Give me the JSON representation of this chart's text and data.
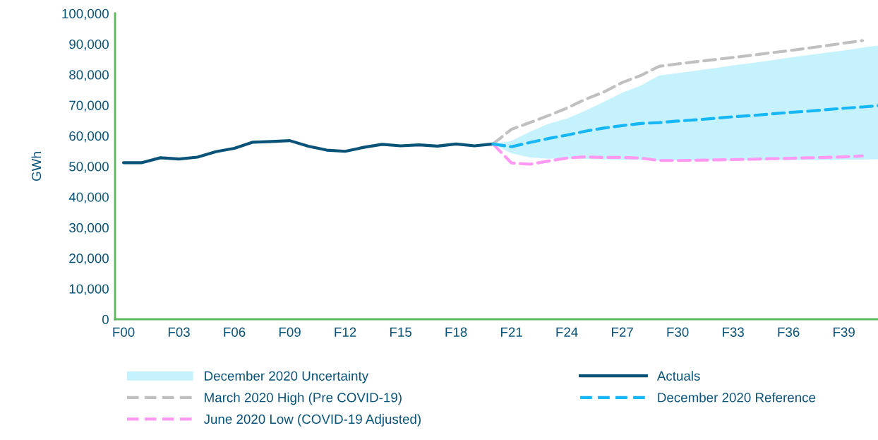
{
  "chart_data": {
    "type": "line",
    "ylabel": "GWh",
    "categories": [
      "F00",
      null,
      null,
      "F03",
      null,
      null,
      "F06",
      null,
      null,
      "F09",
      null,
      null,
      "F12",
      null,
      null,
      "F15",
      null,
      null,
      "F18",
      null,
      null,
      "F21",
      null,
      null,
      "F24",
      null,
      null,
      "F27",
      null,
      null,
      "F30",
      null,
      null,
      "F33",
      null,
      null,
      "F36",
      null,
      null,
      "F39",
      null,
      null
    ],
    "ylim": [
      0,
      100000
    ],
    "yticks": [
      0,
      {
        "value": 10000,
        "label": "10,000"
      },
      {
        "value": 20000,
        "label": "20,000"
      },
      {
        "value": 30000,
        "label": "30,000"
      },
      {
        "value": 40000,
        "label": "40,000"
      },
      {
        "value": 50000,
        "label": "50,000"
      },
      {
        "value": 60000,
        "label": "60,000"
      },
      {
        "value": 70000,
        "label": "70,000"
      },
      {
        "value": 80000,
        "label": "80,000"
      },
      {
        "value": 90000,
        "label": "90,000"
      },
      {
        "value": 100000,
        "label": "100,000"
      }
    ],
    "grid": false,
    "legend": "bottom",
    "series": [
      {
        "name": "December 2020 Uncertainty",
        "type": "line",
        "line_style": "none",
        "color": "#c6f2fd",
        "values": [
          null,
          null,
          null,
          null,
          null,
          null,
          null,
          null,
          null,
          null,
          null,
          null,
          null,
          null,
          null,
          null,
          null,
          null,
          null,
          null,
          null,
          null,
          null,
          null,
          null,
          null,
          null,
          null,
          null,
          null,
          null,
          null,
          null,
          null,
          null,
          null,
          null,
          null,
          null,
          null,
          null,
          null
        ],
        "lower": [
          null,
          null,
          null,
          null,
          null,
          null,
          null,
          null,
          null,
          null,
          null,
          null,
          null,
          null,
          null,
          null,
          null,
          null,
          null,
          null,
          57300,
          54300,
          52900,
          52500,
          52500,
          52400,
          52300,
          52200,
          52100,
          51900,
          51900,
          51900,
          51900,
          52000,
          52000,
          52000,
          52100,
          52100,
          52100,
          52200,
          52200,
          52300
        ],
        "upper": [
          null,
          null,
          null,
          null,
          null,
          null,
          null,
          null,
          null,
          null,
          null,
          null,
          null,
          null,
          null,
          null,
          null,
          null,
          null,
          null,
          57300,
          58300,
          61300,
          63900,
          65600,
          68200,
          71100,
          74100,
          76400,
          79700,
          80500,
          81300,
          82100,
          83000,
          83800,
          84600,
          85500,
          86300,
          87100,
          87900,
          88800,
          89600
        ]
      },
      {
        "name": "March 2020 High (Pre COVID-19)",
        "line_style": "dashed",
        "color": "#c0c0c0",
        "values": [
          null,
          null,
          null,
          null,
          null,
          null,
          null,
          null,
          null,
          null,
          null,
          null,
          null,
          null,
          null,
          null,
          null,
          null,
          null,
          null,
          57300,
          62100,
          64300,
          66600,
          69000,
          71900,
          74300,
          77400,
          79700,
          82700,
          83500,
          84200,
          84900,
          85600,
          86300,
          87100,
          87800,
          88600,
          89400,
          90300,
          91100,
          null
        ]
      },
      {
        "name": "June 2020 Low (COVID-19 Adjusted)",
        "line_style": "dashed",
        "color": "#ff99f2",
        "values": [
          null,
          null,
          null,
          null,
          null,
          null,
          null,
          null,
          null,
          null,
          null,
          null,
          null,
          null,
          null,
          null,
          null,
          null,
          null,
          null,
          57300,
          51100,
          50700,
          51700,
          52700,
          53100,
          52900,
          52900,
          52700,
          51900,
          51900,
          52000,
          52100,
          52200,
          52300,
          52500,
          52600,
          52800,
          52900,
          53100,
          53400,
          null
        ]
      },
      {
        "name": "Actuals",
        "line_style": "solid",
        "color": "#0a5378",
        "values": [
          51200,
          51200,
          52800,
          52400,
          53000,
          54800,
          55900,
          57900,
          58100,
          58400,
          56600,
          55300,
          54900,
          56200,
          57200,
          56700,
          57000,
          56600,
          57300,
          56700,
          57300,
          null,
          null,
          null,
          null,
          null,
          null,
          null,
          null,
          null,
          null,
          null,
          null,
          null,
          null,
          null,
          null,
          null,
          null,
          null,
          null,
          null
        ]
      },
      {
        "name": "December 2020 Reference",
        "line_style": "dashed",
        "color": "#17b6f5",
        "values": [
          null,
          null,
          null,
          null,
          null,
          null,
          null,
          null,
          null,
          null,
          null,
          null,
          null,
          null,
          null,
          null,
          null,
          null,
          null,
          null,
          57300,
          56400,
          57800,
          59100,
          60200,
          61500,
          62500,
          63300,
          64000,
          64300,
          64800,
          65200,
          65700,
          66200,
          66600,
          67100,
          67600,
          68000,
          68500,
          69000,
          69400,
          69900
        ]
      }
    ]
  }
}
